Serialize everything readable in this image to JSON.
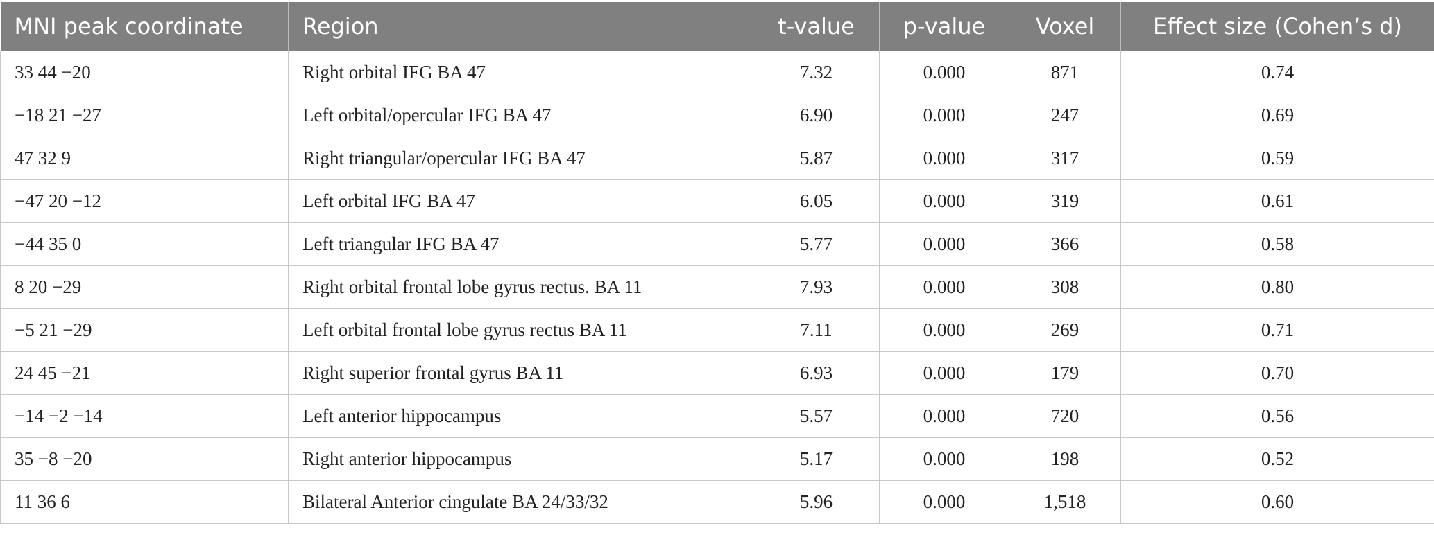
{
  "table": {
    "headers": [
      "MNI peak coordinate",
      "Region",
      "t-value",
      "p-value",
      "Voxel",
      "Effect size (Cohen’s d)"
    ],
    "rows": [
      [
        "33 44 −20",
        "Right orbital IFG BA 47",
        "7.32",
        "0.000",
        "871",
        "0.74"
      ],
      [
        "−18 21 −27",
        "Left orbital/opercular IFG BA 47",
        "6.90",
        "0.000",
        "247",
        "0.69"
      ],
      [
        "47 32 9",
        "Right triangular/opercular IFG BA 47",
        "5.87",
        "0.000",
        "317",
        "0.59"
      ],
      [
        "−47 20 −12",
        "Left orbital IFG BA 47",
        "6.05",
        "0.000",
        "319",
        "0.61"
      ],
      [
        "−44 35 0",
        "Left triangular IFG BA 47",
        "5.77",
        "0.000",
        "366",
        "0.58"
      ],
      [
        "8 20 −29",
        "Right orbital frontal lobe gyrus rectus. BA 11",
        "7.93",
        "0.000",
        "308",
        "0.80"
      ],
      [
        "−5 21 −29",
        "Left orbital frontal lobe gyrus rectus BA 11",
        "7.11",
        "0.000",
        "269",
        "0.71"
      ],
      [
        "24 45 −21",
        "Right superior frontal gyrus BA 11",
        "6.93",
        "0.000",
        "179",
        "0.70"
      ],
      [
        "−14 −2 −14",
        "Left anterior hippocampus",
        "5.57",
        "0.000",
        "720",
        "0.56"
      ],
      [
        "35 −8 −20",
        "Right anterior hippocampus",
        "5.17",
        "0.000",
        "198",
        "0.52"
      ],
      [
        "11 36 6",
        "Bilateral Anterior cingulate BA 24/33/32",
        "5.96",
        "0.000",
        "1,518",
        "0.60"
      ]
    ]
  }
}
